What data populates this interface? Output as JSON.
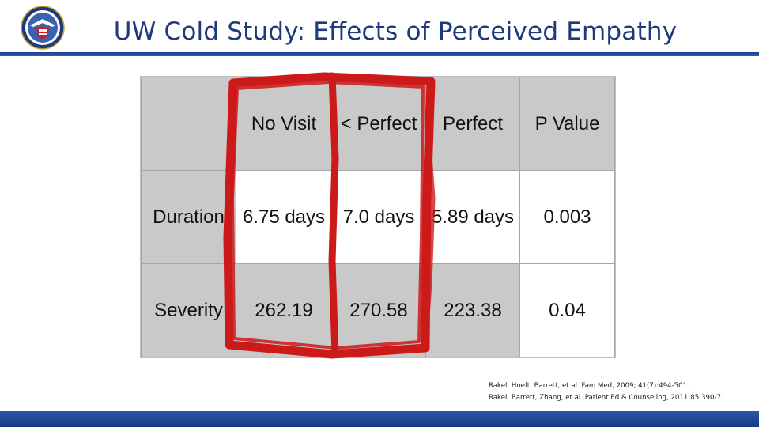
{
  "title": "UW Cold Study: Effects of Perceived Empathy",
  "table": {
    "headers": [
      "",
      "No Visit",
      "< Perfect",
      "Perfect",
      "P Value"
    ],
    "rows": [
      {
        "label": "Duration",
        "cells": [
          "6.75 days",
          "7.0 days",
          "5.89 days",
          "0.003"
        ]
      },
      {
        "label": "Severity",
        "cells": [
          "262.19",
          "270.58",
          "223.38",
          "0.04"
        ]
      }
    ]
  },
  "references": [
    "Rakel, Hoeft, Barrett, et al. Fam Med, 2009; 41(7):494-501.",
    "Rakel, Barrett, Zhang, et al. Patient Ed & Counseling, 2011;85:390-7."
  ],
  "colors": {
    "title": "#1f3a7a",
    "header_cells": "#c9c9c9",
    "highlight": "#cc1a1a",
    "footer": "#1b3f8f"
  }
}
